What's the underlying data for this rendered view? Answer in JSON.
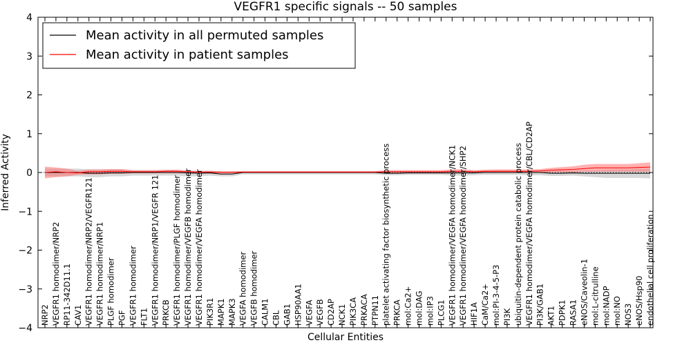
{
  "chart_data": {
    "type": "line",
    "title": "VEGFR1 specific signals -- 50 samples",
    "xlabel": "Cellular Entities",
    "ylabel": "Inferred Activity",
    "ylim": [
      -4,
      4
    ],
    "yticks": [
      4,
      3,
      2,
      1,
      0,
      -1,
      -2,
      -3,
      -4
    ],
    "ytick_labels": [
      "4",
      "3",
      "2",
      "1",
      "0",
      "−1",
      "−2",
      "−3",
      "−4"
    ],
    "grid": false,
    "legend_placement": "top-left",
    "categories": [
      "NRP2",
      "VEGFR1 homodimer/NRP2",
      "RP11-342D11.1",
      "CAV1",
      "VEGFR1 homodimer/NRP2/VEGFR121",
      "VEGFR1 homodimer/NRP1",
      "PLGF homodimer",
      "PGF",
      "VEGFR1 homodimer",
      "FLT1",
      "VEGFR1 homodimer/NRP1/VEGFR 121",
      "PRKCB",
      "VEGFR1 homodimer/PLGF homodimer",
      "VEGFR1 homodimer/VEGFB homodimer",
      "VEGFR1 homodimer/VEGFA homodimer",
      "PIK3R1",
      "MAPK1",
      "MAPK3",
      "VEGFA homodimer",
      "VEGFB homodimer",
      "CALM1",
      "CBL",
      "GAB1",
      "HSP90AA1",
      "VEGFA",
      "VEGFB",
      "CD2AP",
      "NCK1",
      "PIK3CA",
      "PRKACA",
      "PTPN11",
      "platelet activating factor biosynthetic process",
      "PRKCA",
      "mol:Ca2+",
      "mol:DAG",
      "mol:IP3",
      "PLCG1",
      "VEGFR1 homodimer/VEGFA homodimer/NCK1",
      "VEGFR1 homodimer/VEGFA homodimer/SHP2",
      "HIF1A",
      "CaM/Ca2+",
      "mol:PI-3-4-5-P3",
      "PI3K",
      "ubiquitin-dependent protein catabolic process",
      "VEGFR1 homodimer/VEGFA homodimer/CBL/CD2AP",
      "PI3K/GAB1",
      "AKT1",
      "PDPK1",
      "RASA1",
      "eNOS/Caveolin-1",
      "mol:L-citrulline",
      "mol:NADP",
      "mol:NO",
      "NOS3",
      "eNOS/Hsp90",
      "endothelial cell proliferation"
    ],
    "series": [
      {
        "name": "Mean activity in all permuted samples",
        "color": "#000000",
        "values": [
          0,
          0,
          0,
          0,
          -0.02,
          -0.02,
          -0.01,
          -0.01,
          0,
          0,
          0,
          0,
          0,
          -0.01,
          -0.02,
          -0.01,
          -0.04,
          -0.04,
          0,
          0,
          0,
          0,
          0,
          0,
          0,
          0,
          0,
          0,
          0,
          0,
          0,
          -0.02,
          -0.02,
          -0.01,
          -0.01,
          -0.01,
          -0.01,
          -0.01,
          -0.01,
          -0.01,
          0,
          0,
          0,
          0,
          0,
          0,
          -0.02,
          -0.02,
          -0.01,
          -0.02,
          -0.02,
          -0.02,
          -0.02,
          -0.02,
          -0.02,
          -0.02
        ],
        "band_low": [
          -0.1,
          -0.1,
          -0.1,
          -0.1,
          -0.12,
          -0.12,
          -0.1,
          -0.1,
          -0.08,
          -0.08,
          -0.08,
          -0.08,
          -0.08,
          -0.1,
          -0.1,
          -0.08,
          -0.1,
          -0.1,
          -0.05,
          -0.05,
          -0.05,
          -0.05,
          -0.05,
          -0.05,
          -0.05,
          -0.05,
          -0.05,
          -0.05,
          -0.05,
          -0.05,
          -0.05,
          -0.07,
          -0.07,
          -0.06,
          -0.06,
          -0.06,
          -0.06,
          -0.08,
          -0.08,
          -0.07,
          -0.06,
          -0.06,
          -0.06,
          -0.06,
          -0.07,
          -0.07,
          -0.09,
          -0.09,
          -0.08,
          -0.1,
          -0.12,
          -0.14,
          -0.14,
          -0.14,
          -0.14,
          -0.15
        ],
        "band_high": [
          0.1,
          0.1,
          0.1,
          0.1,
          0.08,
          0.08,
          0.08,
          0.08,
          0.06,
          0.06,
          0.06,
          0.06,
          0.06,
          0.05,
          0.04,
          0.05,
          0.03,
          0.03,
          0.04,
          0.04,
          0.04,
          0.04,
          0.04,
          0.04,
          0.04,
          0.04,
          0.04,
          0.04,
          0.04,
          0.04,
          0.04,
          0.04,
          0.04,
          0.04,
          0.04,
          0.04,
          0.04,
          0.05,
          0.05,
          0.05,
          0.05,
          0.05,
          0.05,
          0.05,
          0.05,
          0.05,
          0.04,
          0.04,
          0.05,
          0.05,
          0.06,
          0.07,
          0.08,
          0.08,
          0.09,
          0.1
        ]
      },
      {
        "name": "Mean activity in patient samples",
        "color": "#ff0000",
        "values": [
          0,
          0.02,
          0,
          -0.01,
          0.02,
          0.02,
          0.03,
          0.03,
          0.02,
          0.02,
          0.02,
          0.03,
          0.03,
          0.02,
          0.01,
          0.01,
          0,
          0,
          0.01,
          0.01,
          0.01,
          0.01,
          0.01,
          0.01,
          0.01,
          0.01,
          0.01,
          0.01,
          0.01,
          0.01,
          0.01,
          0.02,
          0.02,
          0.02,
          0.02,
          0.02,
          0.02,
          0.03,
          0.03,
          0.02,
          0.03,
          0.03,
          0.03,
          0.03,
          0.03,
          0.04,
          0.06,
          0.07,
          0.08,
          0.1,
          0.12,
          0.12,
          0.12,
          0.12,
          0.13,
          0.14
        ],
        "band_low": [
          -0.15,
          -0.12,
          -0.1,
          -0.06,
          -0.05,
          -0.05,
          -0.03,
          -0.03,
          -0.02,
          -0.02,
          -0.02,
          -0.02,
          -0.02,
          -0.02,
          -0.02,
          -0.02,
          -0.02,
          -0.02,
          -0.01,
          -0.01,
          -0.01,
          -0.01,
          -0.01,
          -0.01,
          -0.01,
          -0.01,
          -0.01,
          -0.01,
          -0.01,
          -0.01,
          -0.01,
          -0.01,
          -0.01,
          -0.01,
          -0.01,
          -0.01,
          -0.01,
          -0.01,
          -0.01,
          -0.01,
          -0.01,
          -0.01,
          -0.01,
          -0.01,
          -0.01,
          -0.01,
          0,
          0,
          0.01,
          0.02,
          0.02,
          0.02,
          0.02,
          0.02,
          0.02,
          0.02
        ],
        "band_high": [
          0.15,
          0.13,
          0.1,
          0.04,
          0.08,
          0.08,
          0.09,
          0.09,
          0.06,
          0.06,
          0.06,
          0.07,
          0.07,
          0.05,
          0.04,
          0.04,
          0.03,
          0.03,
          0.03,
          0.03,
          0.03,
          0.03,
          0.03,
          0.03,
          0.03,
          0.03,
          0.03,
          0.03,
          0.03,
          0.03,
          0.03,
          0.06,
          0.06,
          0.06,
          0.06,
          0.06,
          0.06,
          0.08,
          0.08,
          0.06,
          0.07,
          0.08,
          0.08,
          0.08,
          0.08,
          0.09,
          0.12,
          0.14,
          0.16,
          0.2,
          0.22,
          0.22,
          0.22,
          0.22,
          0.24,
          0.26
        ]
      }
    ]
  }
}
